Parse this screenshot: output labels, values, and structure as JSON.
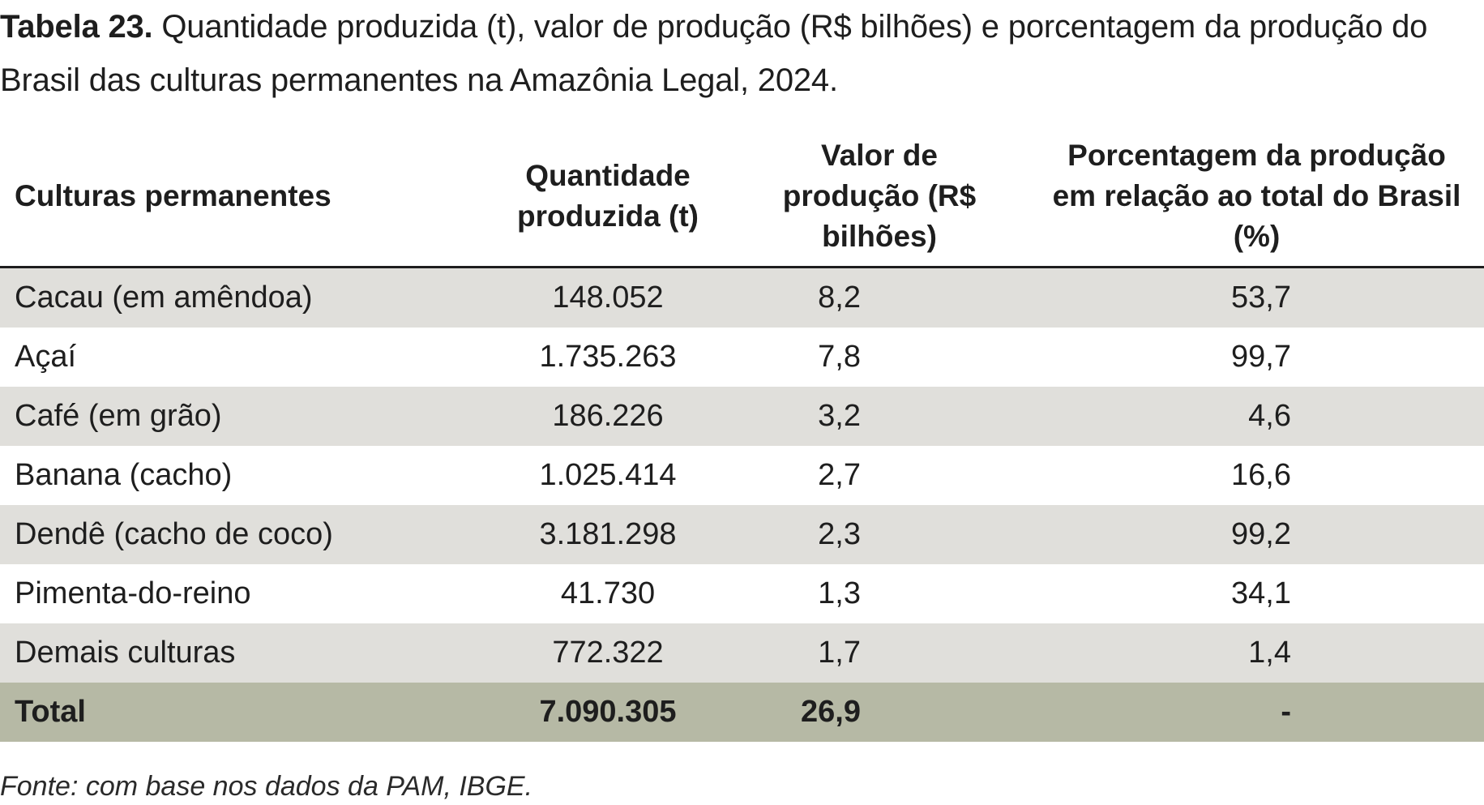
{
  "caption": {
    "label": "Tabela 23.",
    "text": " Quantidade produzida (t), valor de produção (R$ bilhões) e porcentagem da produção do Brasil das culturas permanentes na Amazônia Legal, 2024."
  },
  "table": {
    "headers": [
      "Culturas permanentes",
      "Quantidade produzida (t)",
      "Valor de produção (R$ bilhões)",
      "Porcentagem da produção em relação ao total do Brasil (%)"
    ],
    "rows": [
      [
        "Cacau (em amêndoa)",
        "148.052",
        "8,2",
        "53,7"
      ],
      [
        "Açaí",
        "1.735.263",
        "7,8",
        "99,7"
      ],
      [
        "Café (em grão)",
        "186.226",
        "3,2",
        "4,6"
      ],
      [
        "Banana (cacho)",
        "1.025.414",
        "2,7",
        "16,6"
      ],
      [
        "Dendê (cacho de coco)",
        "3.181.298",
        "2,3",
        "99,2"
      ],
      [
        "Pimenta-do-reino",
        "41.730",
        "1,3",
        "34,1"
      ],
      [
        "Demais culturas",
        "772.322",
        "1,7",
        "1,4"
      ]
    ],
    "total": [
      "Total",
      "7.090.305",
      "26,9",
      "-"
    ]
  },
  "source": "Fonte: com base nos dados da PAM, IBGE.",
  "colors": {
    "shaded_row": "#e0dfdb",
    "total_row": "#b6b9a5"
  }
}
